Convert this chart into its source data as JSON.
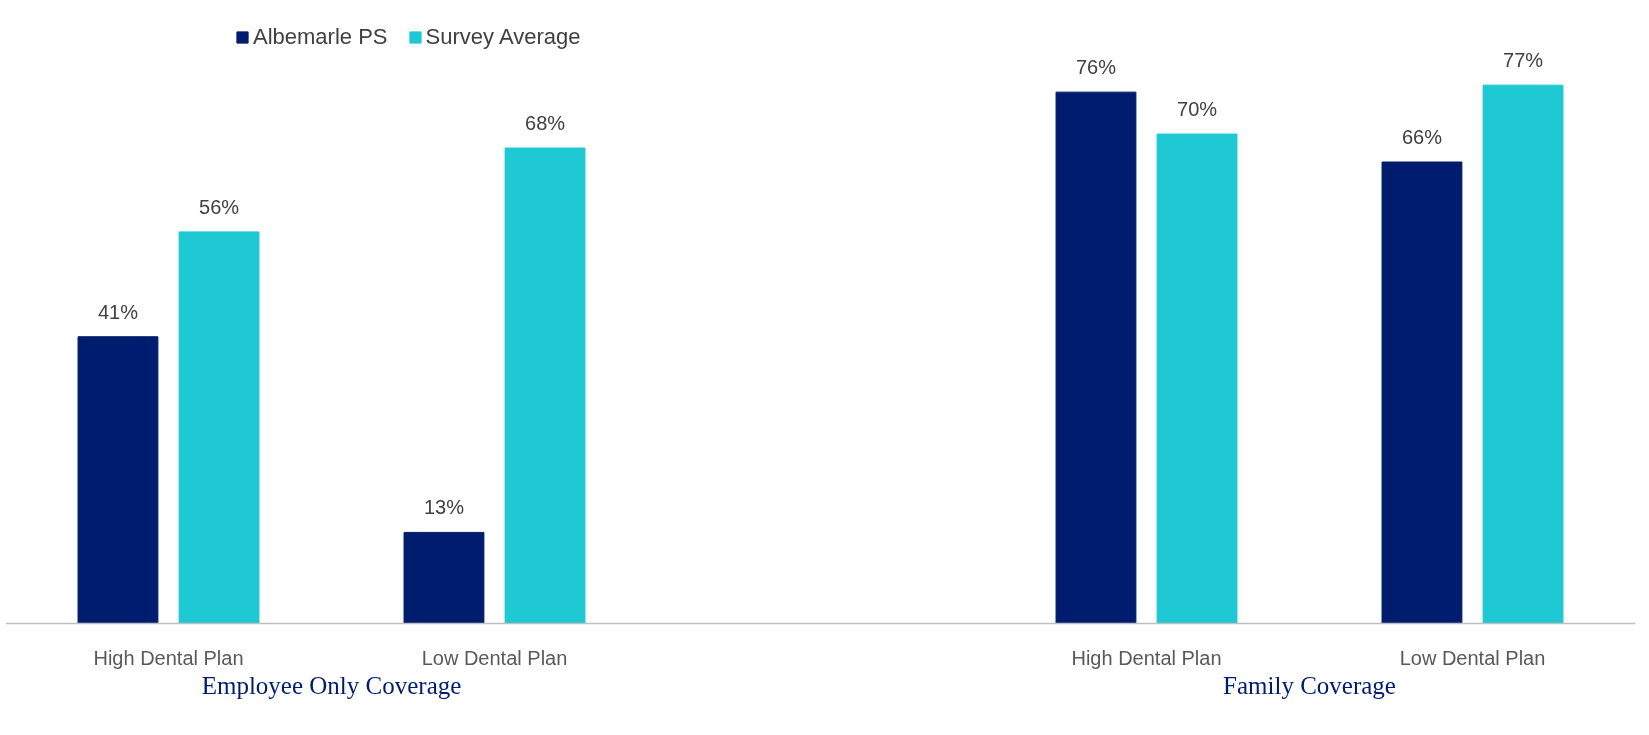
{
  "chart_data": {
    "type": "bar",
    "categories": [
      "High Dental Plan",
      "Low Dental Plan",
      null,
      "High Dental Plan",
      "Low Dental Plan"
    ],
    "series": [
      {
        "name": "Albemarle PS",
        "color": "#001c6e",
        "values": [
          41,
          13,
          null,
          76,
          66
        ],
        "value_labels": [
          "41%",
          "13%",
          null,
          "76%",
          "66%"
        ]
      },
      {
        "name": "Survey Average",
        "color": "#1ec9d4",
        "values": [
          56,
          68,
          null,
          70,
          77
        ],
        "value_labels": [
          "56%",
          "68%",
          null,
          "70%",
          "77%"
        ]
      }
    ],
    "legend": "top left",
    "grid": false,
    "annotations": [
      "Employee Only Coverage",
      "Family Coverage"
    ]
  }
}
